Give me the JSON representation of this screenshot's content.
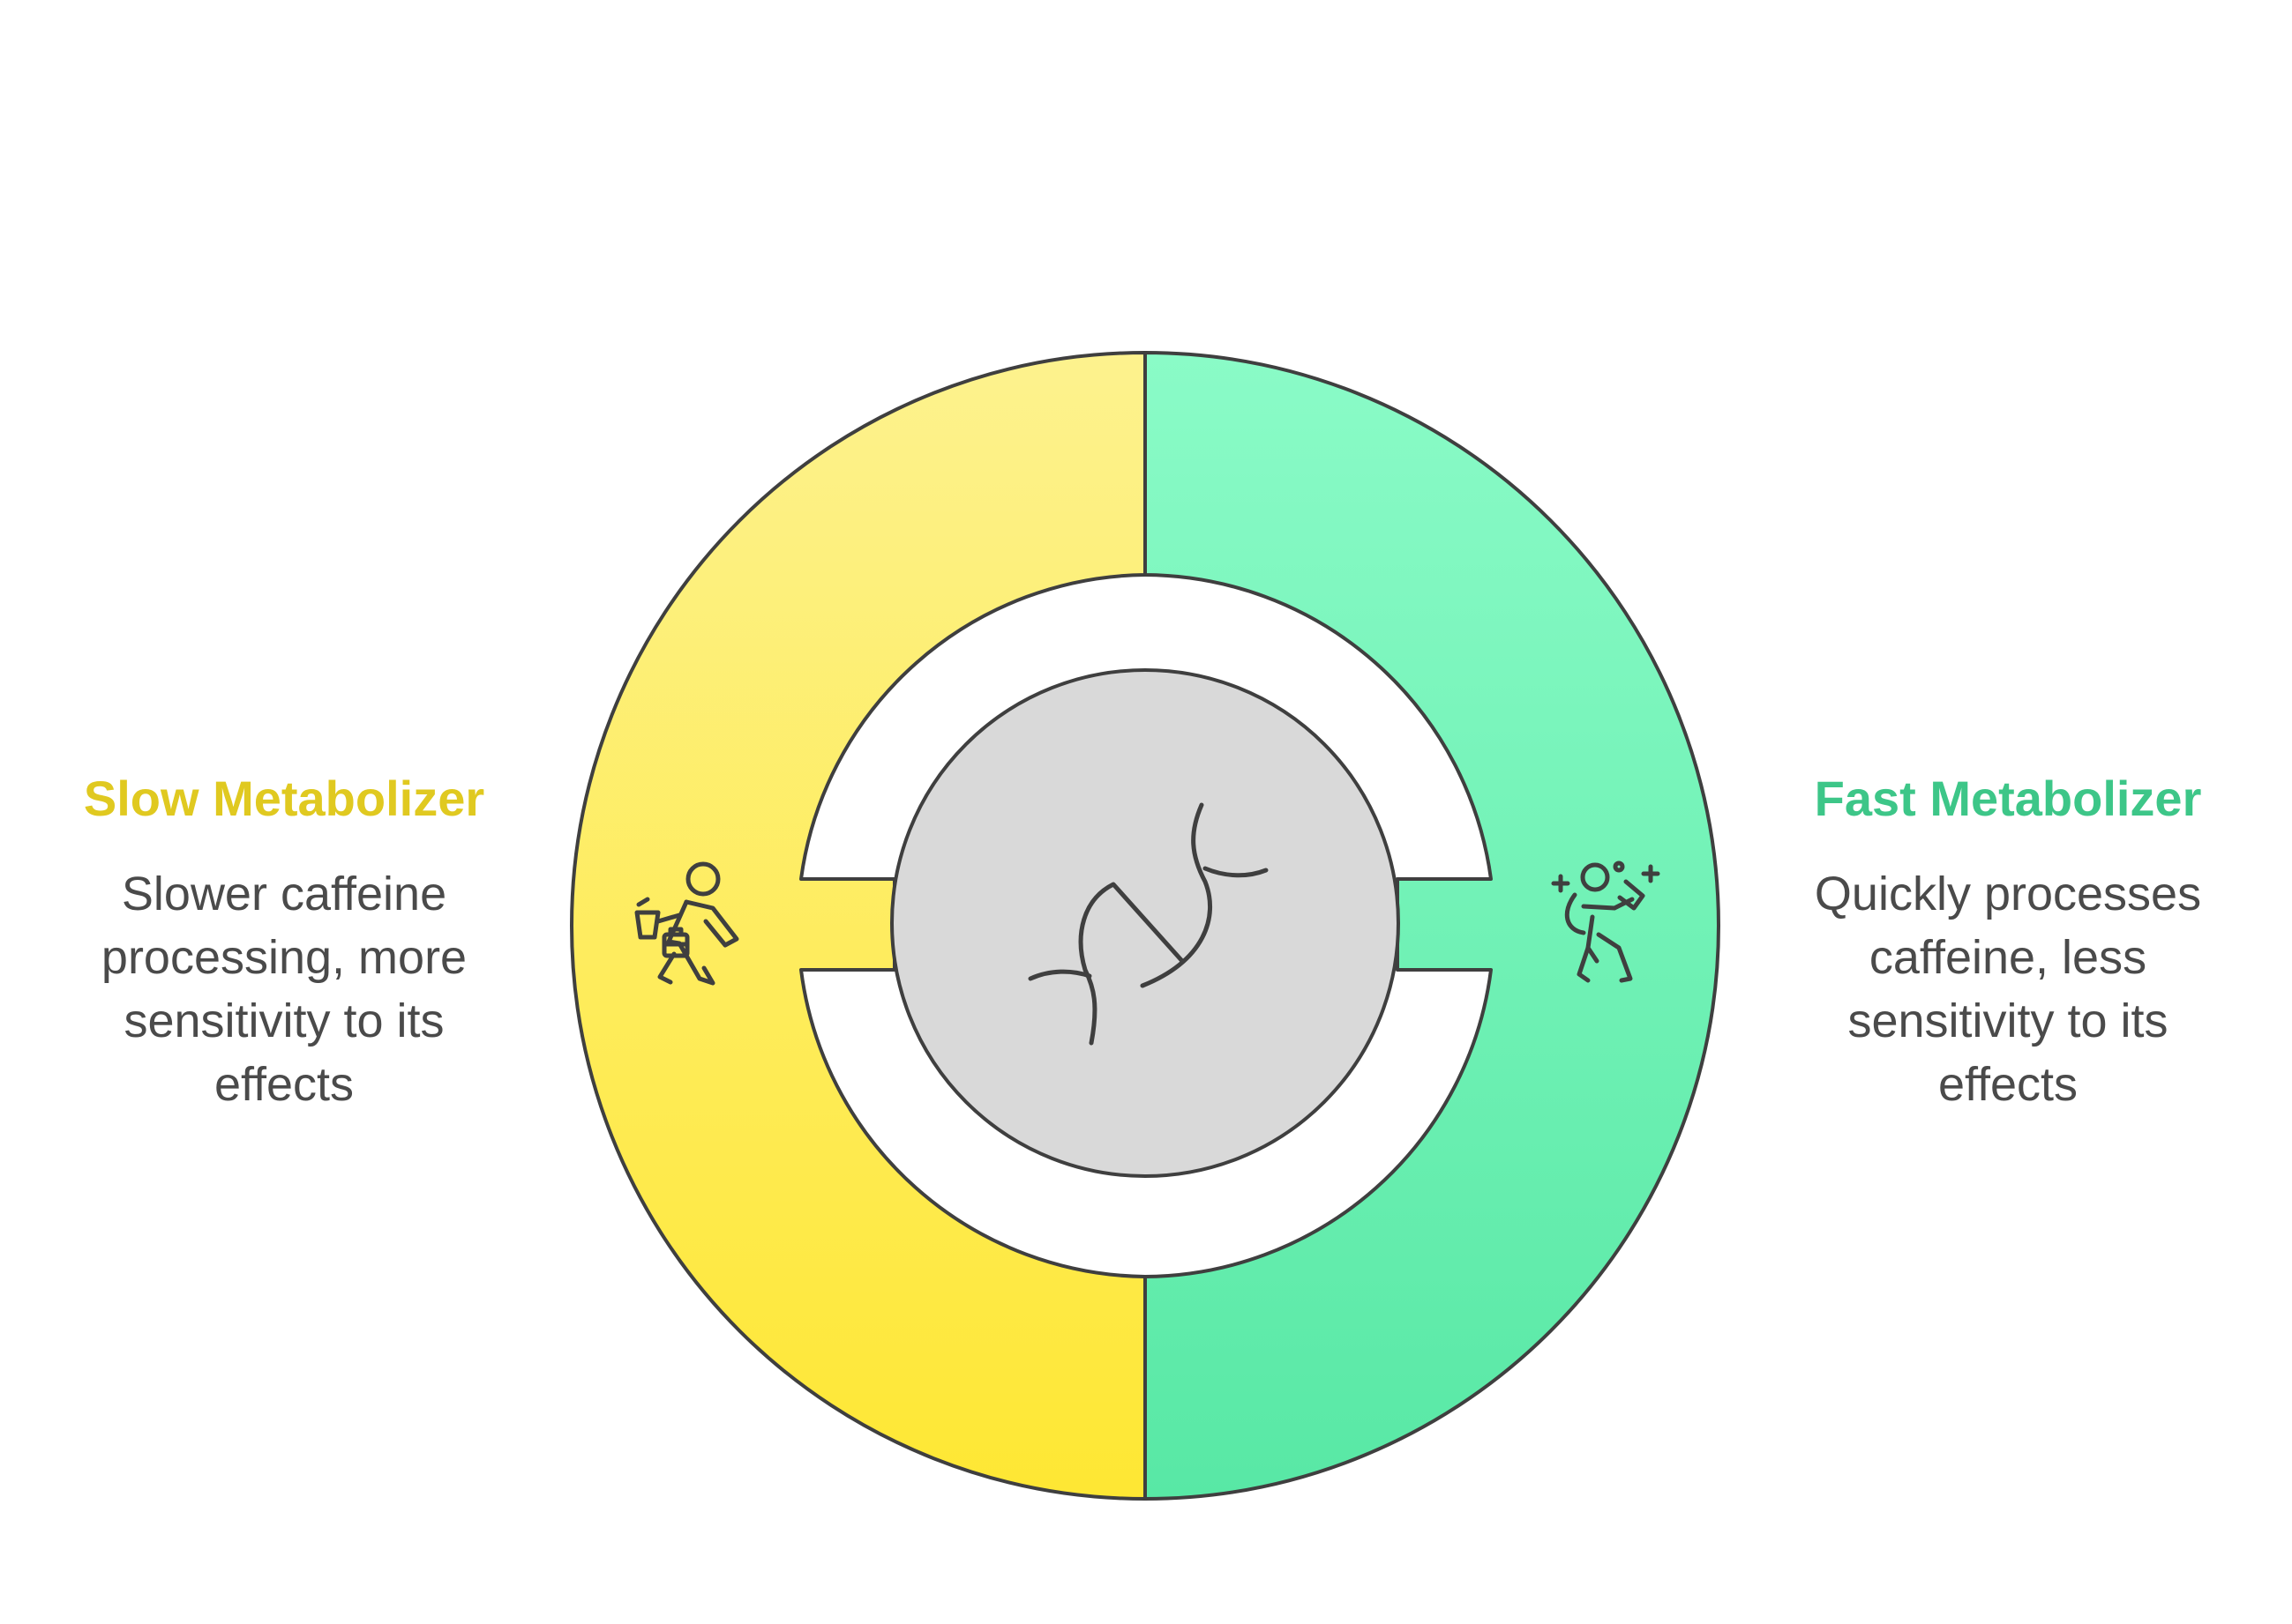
{
  "left": {
    "title": "Slow Metabolizer",
    "description": "Slower caffeine processing, more sensitivity to its effects",
    "color": "#E0C920",
    "segment_gradient": [
      "#FDF28E",
      "#FEE733"
    ],
    "icon": "walking-person-with-coffee-and-bag-icon"
  },
  "right": {
    "title": "Fast Metabolizer",
    "description": "Quickly processes caffeine, less sensitivity to its effects",
    "color": "#3DC688",
    "segment_gradient": [
      "#8AFBC7",
      "#58E8A5"
    ],
    "icon": "energetic-person-with-sparkles-icon"
  },
  "center": {
    "icon": "dna-icon",
    "fill": "#D9D9D9"
  },
  "stroke": "#3F3F3F"
}
